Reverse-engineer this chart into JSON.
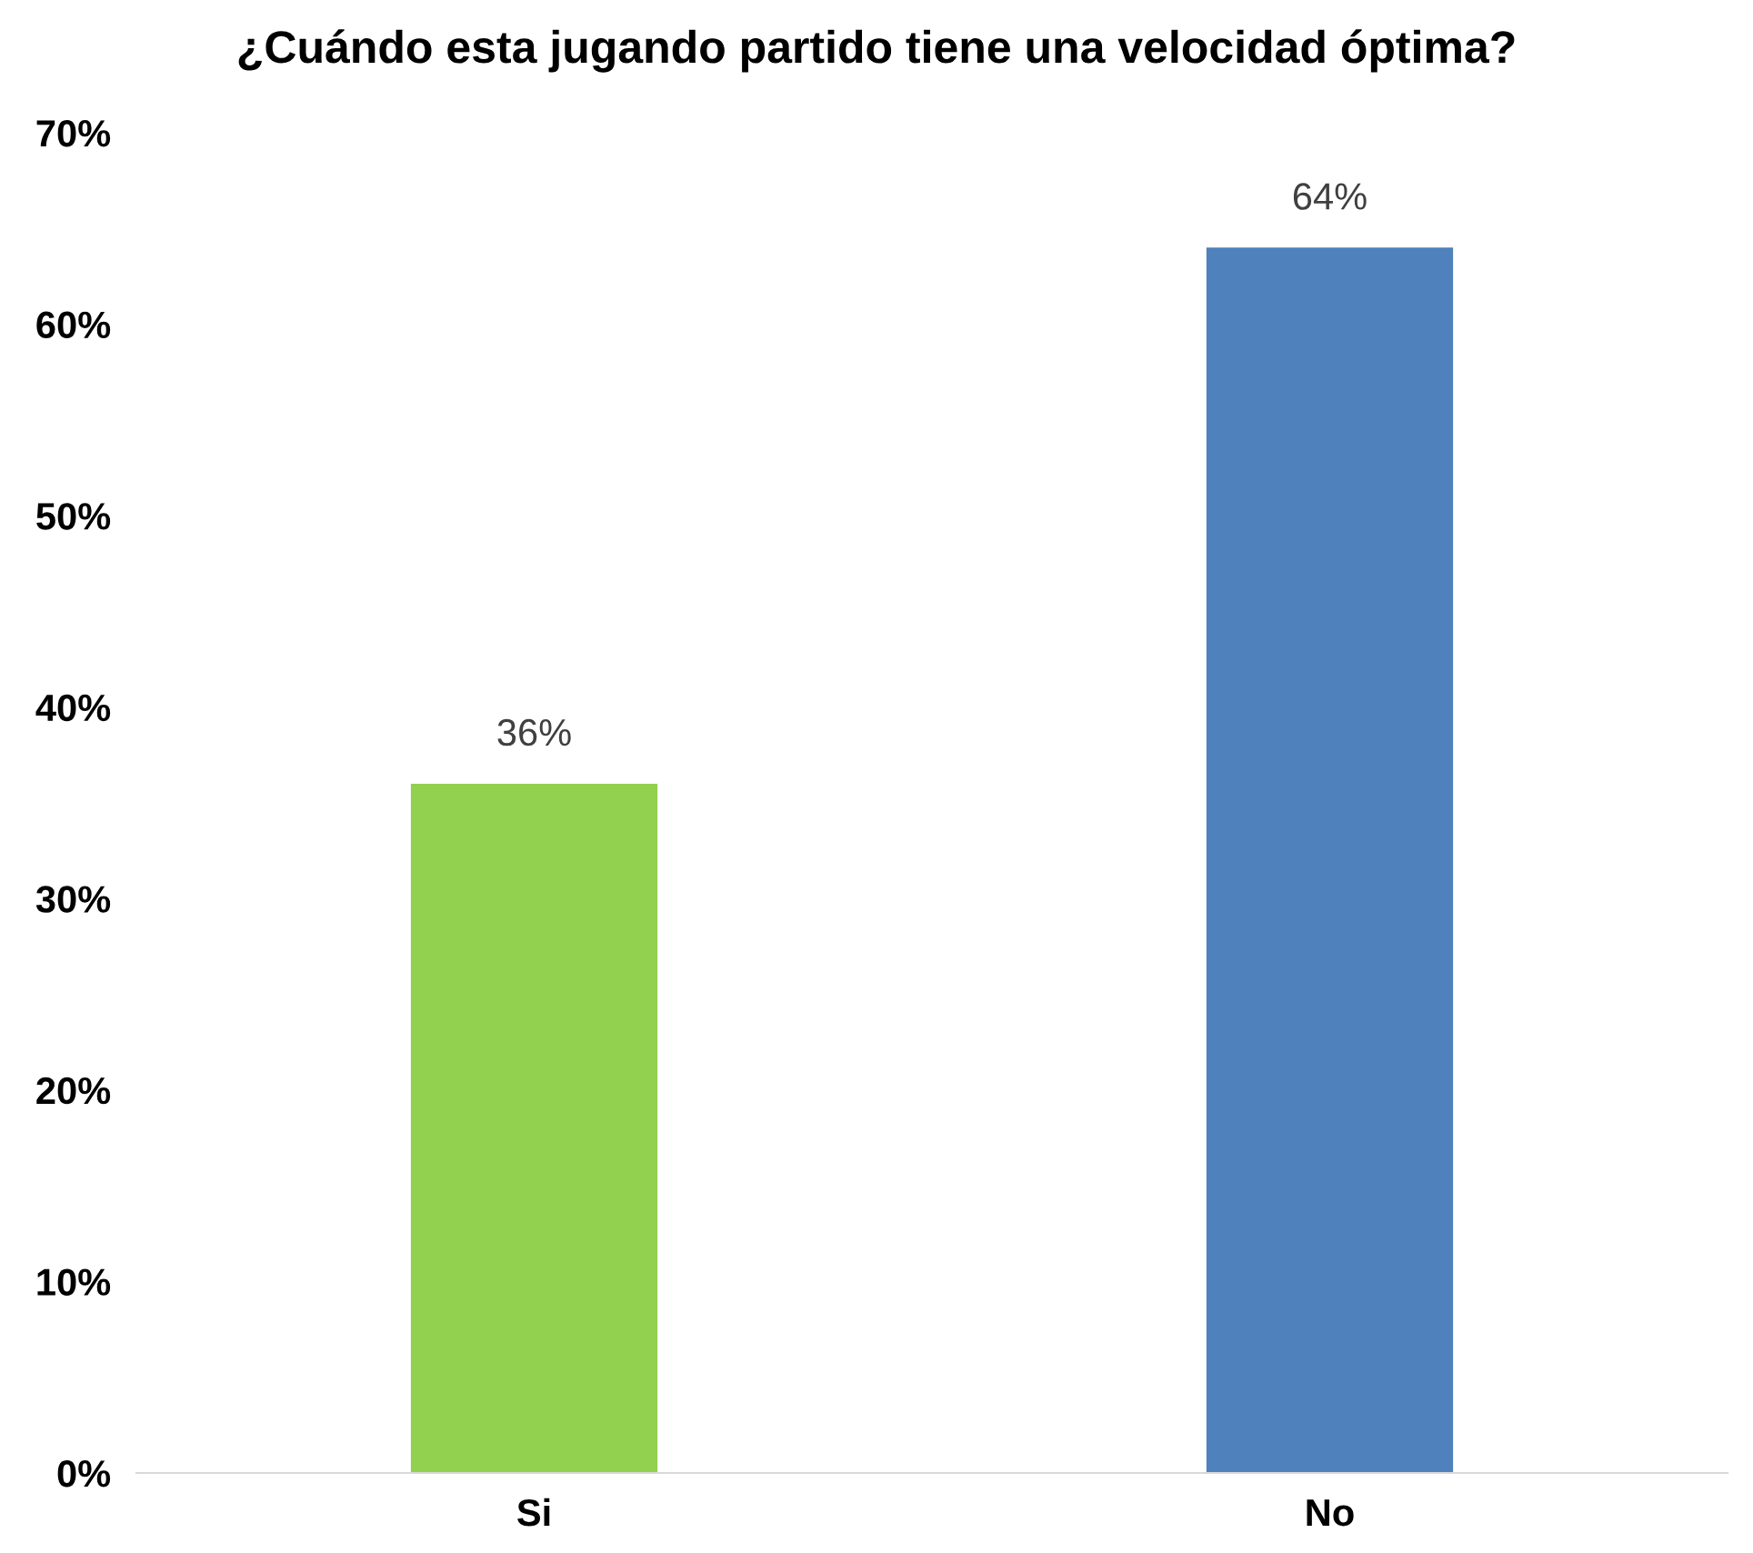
{
  "chart_data": {
    "type": "bar",
    "title": "¿Cuándo esta jugando partido tiene una velocidad óptima?",
    "categories": [
      "Si",
      "No"
    ],
    "values": [
      36,
      64
    ],
    "colors": [
      "#92d050",
      "#4f81bd"
    ],
    "value_labels": [
      "36%",
      "64%"
    ],
    "ylim": [
      0,
      70
    ],
    "yticks": [
      {
        "value": 0,
        "label": "0%"
      },
      {
        "value": 10,
        "label": "10%"
      },
      {
        "value": 20,
        "label": "20%"
      },
      {
        "value": 30,
        "label": "30%"
      },
      {
        "value": 40,
        "label": "40%"
      },
      {
        "value": 50,
        "label": "50%"
      },
      {
        "value": 60,
        "label": "60%"
      },
      {
        "value": 70,
        "label": "70%"
      }
    ],
    "grid": false,
    "legend": false
  }
}
